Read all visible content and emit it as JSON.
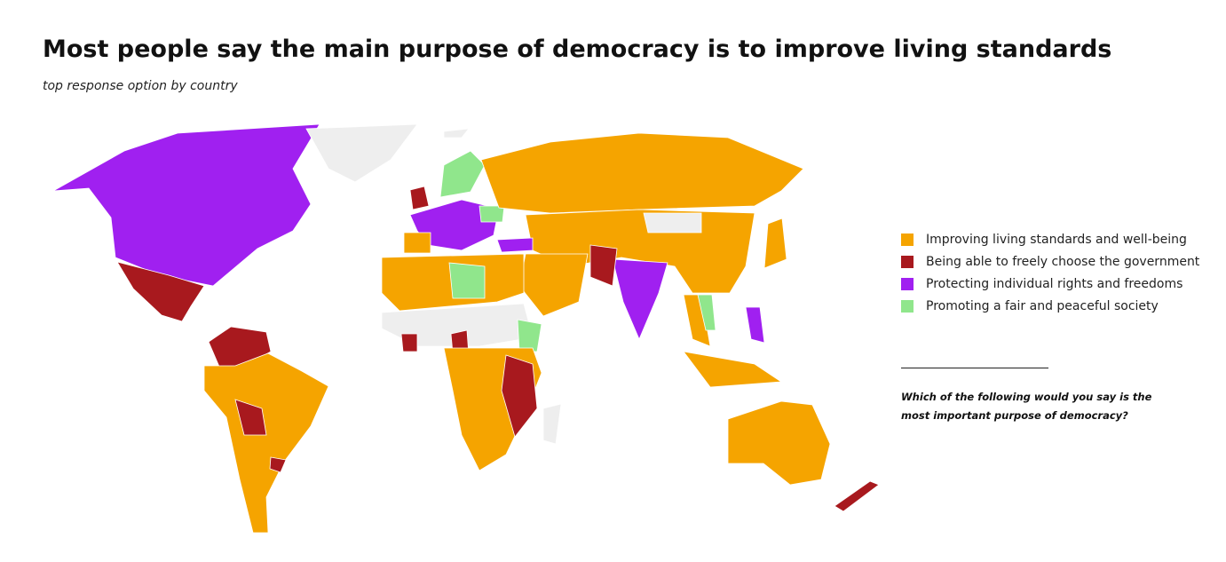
{
  "header": {
    "title": "Most people say the main purpose of democracy is to improve living standards",
    "subtitle": "top response option by country"
  },
  "legend": [
    {
      "label": "Improving living standards and well-being",
      "color": "#f5a400"
    },
    {
      "label": "Being able to freely choose the government",
      "color": "#a8191e"
    },
    {
      "label": "Protecting individual rights and freedoms",
      "color": "#a020f0"
    },
    {
      "label": "Promoting a fair and peaceful society",
      "color": "#90e68c"
    }
  ],
  "note": "Which of the following would you say is the most important purpose of democracy?"
}
